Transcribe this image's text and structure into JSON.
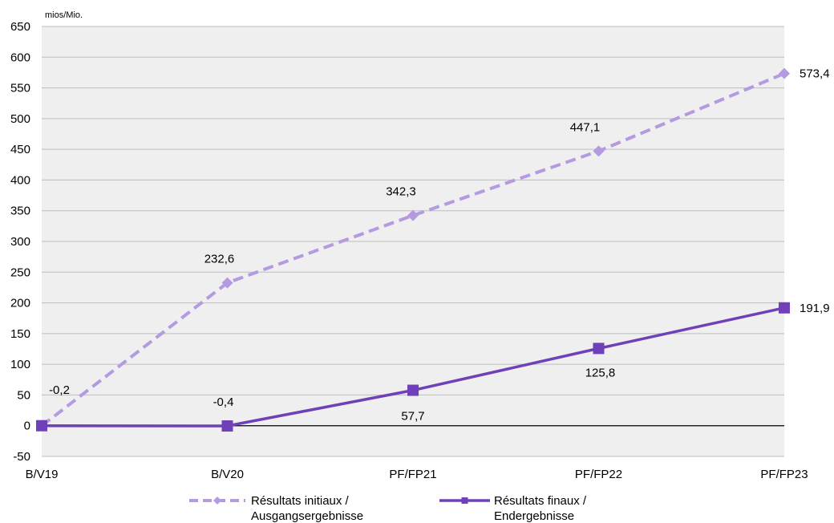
{
  "chart_data": {
    "type": "line",
    "unit_label": "mios/Mio.",
    "categories": [
      "B/V19",
      "B/V20",
      "PF/FP21",
      "PF/FP22",
      "PF/FP23"
    ],
    "ylim": [
      -50,
      650
    ],
    "yticks": [
      -50,
      0,
      50,
      100,
      150,
      200,
      250,
      300,
      350,
      400,
      450,
      500,
      550,
      600,
      650
    ],
    "grid": true,
    "legend_position": "bottom",
    "series": [
      {
        "name": "Résultats initiaux / Ausgangsergebnisse",
        "name_lines": [
          "Résultats initiaux /",
          "Ausgangsergebnisse"
        ],
        "values": [
          -0.2,
          232.6,
          342.3,
          447.1,
          573.4
        ],
        "labels": [
          "-0,2",
          "232,6",
          "342,3",
          "447,1",
          "573,4"
        ],
        "color": "#b49ae0",
        "style": "dashed",
        "marker": "diamond"
      },
      {
        "name": "Résultats finaux / Endergebnisse",
        "name_lines": [
          "Résultats finaux /",
          "Endergebnisse"
        ],
        "values": [
          0,
          -0.4,
          57.7,
          125.8,
          191.9
        ],
        "labels": [
          "",
          "-0,4",
          "57,7",
          "125,8",
          "191,9"
        ],
        "color": "#7040b8",
        "style": "solid",
        "marker": "square"
      }
    ]
  }
}
